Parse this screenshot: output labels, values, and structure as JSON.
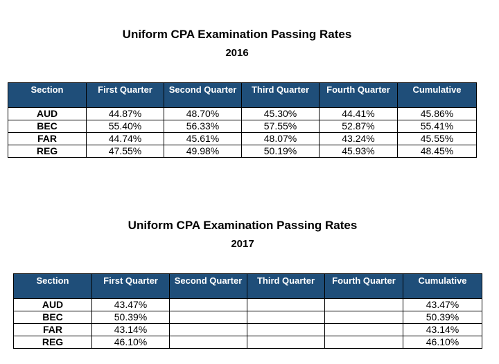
{
  "tables": [
    {
      "title": "Uniform CPA Examination Passing Rates",
      "year": "2016",
      "headers": [
        "Section",
        "First Quarter",
        "Second Quarter",
        "Third Quarter",
        "Fourth Quarter",
        "Cumulative"
      ],
      "rows": [
        [
          "AUD",
          "44.87%",
          "48.70%",
          "45.30%",
          "44.41%",
          "45.86%"
        ],
        [
          "BEC",
          "55.40%",
          "56.33%",
          "57.55%",
          "52.87%",
          "55.41%"
        ],
        [
          "FAR",
          "44.74%",
          "45.61%",
          "48.07%",
          "43.24%",
          "45.55%"
        ],
        [
          "REG",
          "47.55%",
          "49.98%",
          "50.19%",
          "45.93%",
          "48.45%"
        ]
      ]
    },
    {
      "title": "Uniform CPA Examination Passing Rates",
      "year": "2017",
      "headers": [
        "Section",
        "First Quarter",
        "Second Quarter",
        "Third Quarter",
        "Fourth Quarter",
        "Cumulative"
      ],
      "rows": [
        [
          "AUD",
          "43.47%",
          "",
          "",
          "",
          "43.47%"
        ],
        [
          "BEC",
          "50.39%",
          "",
          "",
          "",
          "50.39%"
        ],
        [
          "FAR",
          "43.14%",
          "",
          "",
          "",
          "43.14%"
        ],
        [
          "REG",
          "46.10%",
          "",
          "",
          "",
          "46.10%"
        ]
      ]
    }
  ],
  "colors": {
    "header_bg": "#1f4e79",
    "header_text": "#ffffff"
  }
}
